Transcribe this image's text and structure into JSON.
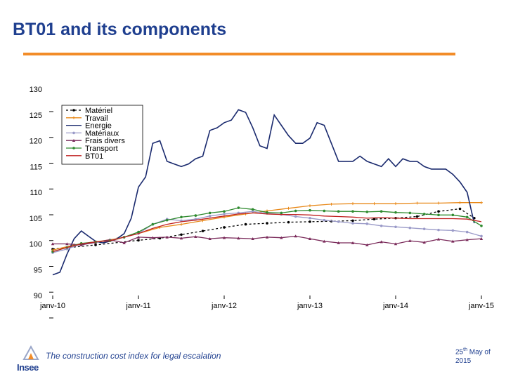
{
  "slide": {
    "title": "BT01 and its components",
    "footer_text": "The construction cost index for legal escalation",
    "date_day": "25",
    "date_suffix": "th",
    "date_rest": "May of",
    "date_year": "2015",
    "logo_text": "Insee"
  },
  "colors": {
    "title": "#1f3f8f",
    "rule": "#f28c28"
  },
  "chart_data": {
    "type": "line",
    "title": "",
    "xlabel": "",
    "ylabel": "",
    "ylim": [
      90,
      130
    ],
    "yticks": [
      90,
      95,
      100,
      105,
      110,
      115,
      120,
      125,
      130
    ],
    "xlim": [
      0,
      60
    ],
    "xticks": [
      {
        "pos": 0,
        "label": "janv-10"
      },
      {
        "pos": 12,
        "label": "janv-11"
      },
      {
        "pos": 24,
        "label": "janv-12"
      },
      {
        "pos": 36,
        "label": "janv-13"
      },
      {
        "pos": 48,
        "label": "janv-14"
      },
      {
        "pos": 60,
        "label": "janv-15"
      }
    ],
    "legend_position": "top-left",
    "series": [
      {
        "name": "Matériel",
        "color": "#000000",
        "dash": "3,3",
        "marker": "circle",
        "x": [
          0,
          6,
          12,
          15,
          18,
          21,
          24,
          27,
          30,
          33,
          36,
          39,
          42,
          45,
          48,
          51,
          54,
          57,
          59
        ],
        "y": [
          99,
          99.8,
          100.7,
          101.1,
          101.8,
          102.5,
          103.2,
          103.8,
          104.0,
          104.2,
          104.3,
          104.4,
          104.5,
          104.8,
          105.0,
          105.3,
          106.3,
          106.8,
          105.0
        ]
      },
      {
        "name": "Travail",
        "color": "#e8891a",
        "dash": "",
        "marker": "plus",
        "x": [
          0,
          3,
          6,
          9,
          12,
          15,
          18,
          21,
          24,
          27,
          30,
          33,
          36,
          39,
          42,
          45,
          48,
          51,
          54,
          57,
          60
        ],
        "y": [
          98.8,
          99.8,
          100.4,
          101.0,
          102.0,
          103.2,
          103.8,
          104.5,
          105.2,
          105.8,
          106.4,
          106.9,
          107.4,
          107.7,
          107.8,
          107.8,
          107.8,
          107.9,
          107.9,
          108.0,
          108.0
        ]
      },
      {
        "name": "Energie",
        "color": "#1a2a6e",
        "dash": "",
        "marker": "none",
        "x": [
          0,
          1,
          2,
          3,
          4,
          5,
          6,
          7,
          8,
          9,
          10,
          11,
          12,
          13,
          14,
          15,
          16,
          17,
          18,
          19,
          20,
          21,
          22,
          23,
          24,
          25,
          26,
          27,
          28,
          29,
          30,
          31,
          32,
          33,
          34,
          35,
          36,
          37,
          38,
          39,
          40,
          41,
          42,
          43,
          44,
          45,
          46,
          47,
          48,
          49,
          50,
          51,
          52,
          53,
          54,
          55,
          56,
          57,
          58,
          59
        ],
        "y": [
          94,
          94.5,
          98,
          101,
          102.5,
          101.5,
          100.5,
          100.2,
          100.5,
          101,
          102,
          105,
          111,
          113,
          119.5,
          120,
          116,
          115.5,
          115,
          115.5,
          116.5,
          117,
          122,
          122.5,
          123.5,
          124,
          126,
          125.5,
          122.5,
          119,
          118.5,
          125,
          123,
          121,
          119.5,
          119.5,
          120.5,
          123.5,
          123,
          119.5,
          116,
          116,
          116,
          117,
          116,
          115.5,
          115,
          116.5,
          115,
          116.5,
          116,
          116,
          115,
          114.5,
          114.5,
          114.5,
          113.5,
          112,
          110,
          104
        ]
      },
      {
        "name": "Matériaux",
        "color": "#9a9ac8",
        "dash": "",
        "marker": "circle",
        "x": [
          0,
          2,
          4,
          6,
          8,
          10,
          12,
          14,
          16,
          18,
          20,
          22,
          24,
          26,
          28,
          30,
          32,
          34,
          36,
          38,
          40,
          42,
          44,
          46,
          48,
          50,
          52,
          54,
          56,
          58,
          60
        ],
        "y": [
          98.3,
          99,
          100,
          100.4,
          100.6,
          101.3,
          102,
          103.8,
          104.8,
          104.5,
          104.8,
          105.4,
          105.8,
          106,
          106.3,
          105.9,
          105.7,
          105.3,
          105,
          104.6,
          104.3,
          104,
          103.9,
          103.5,
          103.3,
          103.1,
          102.9,
          102.7,
          102.6,
          102.3,
          101.5
        ]
      },
      {
        "name": "Frais divers",
        "color": "#7a2a5a",
        "dash": "",
        "marker": "triangle",
        "x": [
          0,
          2,
          4,
          6,
          8,
          10,
          12,
          14,
          16,
          18,
          20,
          22,
          24,
          26,
          28,
          30,
          32,
          34,
          36,
          38,
          40,
          42,
          44,
          46,
          48,
          50,
          52,
          54,
          56,
          58,
          60
        ],
        "y": [
          100,
          100,
          99.8,
          100.3,
          100.8,
          100.2,
          101.3,
          101.2,
          101.3,
          101.1,
          101.4,
          101.0,
          101.2,
          101.1,
          101.0,
          101.3,
          101.2,
          101.5,
          101.0,
          100.5,
          100.2,
          100.2,
          99.8,
          100.4,
          100.0,
          100.6,
          100.3,
          100.9,
          100.5,
          100.8,
          101.0
        ]
      },
      {
        "name": "Transport",
        "color": "#2e8a2e",
        "dash": "",
        "marker": "circle",
        "x": [
          0,
          2,
          4,
          6,
          8,
          10,
          12,
          14,
          16,
          18,
          20,
          22,
          24,
          26,
          28,
          30,
          32,
          34,
          36,
          38,
          40,
          42,
          44,
          46,
          48,
          50,
          52,
          54,
          56,
          58,
          60
        ],
        "y": [
          98.5,
          99.3,
          100.1,
          100.4,
          100.6,
          101.3,
          102.3,
          103.8,
          104.6,
          105.2,
          105.5,
          106.0,
          106.3,
          107.0,
          106.7,
          106.1,
          106.0,
          106.4,
          106.5,
          106.4,
          106.3,
          106.3,
          106.2,
          106.3,
          106.1,
          106.0,
          105.8,
          105.6,
          105.6,
          105.2,
          103.5
        ]
      },
      {
        "name": "BT01",
        "color": "#c02020",
        "dash": "",
        "marker": "none",
        "x": [
          0,
          2,
          4,
          6,
          8,
          10,
          12,
          14,
          16,
          18,
          20,
          22,
          24,
          26,
          28,
          30,
          32,
          34,
          36,
          38,
          40,
          42,
          44,
          46,
          48,
          50,
          52,
          54,
          56,
          58,
          60
        ],
        "y": [
          98.5,
          99.3,
          100,
          100.4,
          100.6,
          101.3,
          102.0,
          103.0,
          103.8,
          104.3,
          104.6,
          105.0,
          105.4,
          105.8,
          106.0,
          105.8,
          105.7,
          105.7,
          105.6,
          105.4,
          105.3,
          105.2,
          105.0,
          105.1,
          105.0,
          104.9,
          104.9,
          104.9,
          104.9,
          104.8,
          104.3
        ]
      }
    ]
  }
}
